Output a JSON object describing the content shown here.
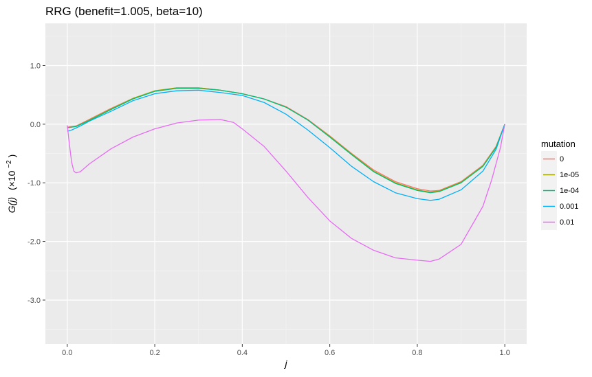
{
  "chart_data": {
    "type": "line",
    "title": "RRG (benefit=1.005, beta=10)",
    "xlabel": "j",
    "ylabel_main": "G(j)",
    "ylabel_scale": "(×10",
    "ylabel_exp": "−2",
    "ylabel_close": ")",
    "xlim": [
      -0.05,
      1.05
    ],
    "ylim": [
      -3.75,
      1.72
    ],
    "x_ticks": [
      0.0,
      0.2,
      0.4,
      0.6,
      0.8,
      1.0
    ],
    "x_tick_labels": [
      "0.0",
      "0.2",
      "0.4",
      "0.6",
      "0.8",
      "1.0"
    ],
    "y_ticks": [
      1.0,
      0.0,
      -1.0,
      -2.0,
      -3.0
    ],
    "y_tick_labels": [
      "1.0",
      "0.0",
      "-1.0",
      "-2.0",
      "-3.0"
    ],
    "grid": true,
    "legend": {
      "title": "mutation",
      "position": "right"
    },
    "series": [
      {
        "name": "0",
        "color": "#F8766D",
        "values": [
          [
            0.0,
            -0.05
          ],
          [
            0.02,
            -0.03
          ],
          [
            0.05,
            0.08
          ],
          [
            0.1,
            0.27
          ],
          [
            0.15,
            0.44
          ],
          [
            0.2,
            0.56
          ],
          [
            0.25,
            0.62
          ],
          [
            0.3,
            0.62
          ],
          [
            0.35,
            0.58
          ],
          [
            0.4,
            0.52
          ],
          [
            0.45,
            0.43
          ],
          [
            0.5,
            0.3
          ],
          [
            0.55,
            0.08
          ],
          [
            0.6,
            -0.2
          ],
          [
            0.65,
            -0.5
          ],
          [
            0.7,
            -0.78
          ],
          [
            0.75,
            -0.98
          ],
          [
            0.8,
            -1.1
          ],
          [
            0.83,
            -1.14
          ],
          [
            0.85,
            -1.13
          ],
          [
            0.9,
            -0.98
          ],
          [
            0.95,
            -0.7
          ],
          [
            0.98,
            -0.38
          ],
          [
            1.0,
            0.0
          ]
        ]
      },
      {
        "name": "1e-05",
        "color": "#A3A500",
        "values": [
          [
            0.0,
            -0.06
          ],
          [
            0.02,
            -0.04
          ],
          [
            0.05,
            0.07
          ],
          [
            0.1,
            0.26
          ],
          [
            0.15,
            0.44
          ],
          [
            0.2,
            0.57
          ],
          [
            0.25,
            0.62
          ],
          [
            0.3,
            0.62
          ],
          [
            0.35,
            0.58
          ],
          [
            0.4,
            0.52
          ],
          [
            0.45,
            0.43
          ],
          [
            0.5,
            0.29
          ],
          [
            0.55,
            0.07
          ],
          [
            0.6,
            -0.21
          ],
          [
            0.65,
            -0.51
          ],
          [
            0.7,
            -0.8
          ],
          [
            0.75,
            -1.0
          ],
          [
            0.8,
            -1.12
          ],
          [
            0.83,
            -1.16
          ],
          [
            0.85,
            -1.14
          ],
          [
            0.9,
            -0.99
          ],
          [
            0.95,
            -0.71
          ],
          [
            0.98,
            -0.39
          ],
          [
            1.0,
            0.0
          ]
        ]
      },
      {
        "name": "1e-04",
        "color": "#00BF7D",
        "values": [
          [
            0.0,
            -0.06
          ],
          [
            0.02,
            -0.04
          ],
          [
            0.05,
            0.06
          ],
          [
            0.1,
            0.25
          ],
          [
            0.15,
            0.43
          ],
          [
            0.2,
            0.56
          ],
          [
            0.25,
            0.61
          ],
          [
            0.3,
            0.61
          ],
          [
            0.35,
            0.58
          ],
          [
            0.4,
            0.52
          ],
          [
            0.45,
            0.43
          ],
          [
            0.5,
            0.29
          ],
          [
            0.55,
            0.07
          ],
          [
            0.6,
            -0.22
          ],
          [
            0.65,
            -0.52
          ],
          [
            0.7,
            -0.81
          ],
          [
            0.75,
            -1.01
          ],
          [
            0.8,
            -1.13
          ],
          [
            0.83,
            -1.17
          ],
          [
            0.85,
            -1.15
          ],
          [
            0.9,
            -1.0
          ],
          [
            0.95,
            -0.72
          ],
          [
            0.98,
            -0.4
          ],
          [
            1.0,
            0.0
          ]
        ]
      },
      {
        "name": "0.001",
        "color": "#00B0F6",
        "values": [
          [
            0.0,
            -0.12
          ],
          [
            0.01,
            -0.1
          ],
          [
            0.03,
            -0.03
          ],
          [
            0.05,
            0.05
          ],
          [
            0.1,
            0.22
          ],
          [
            0.15,
            0.4
          ],
          [
            0.2,
            0.52
          ],
          [
            0.25,
            0.57
          ],
          [
            0.3,
            0.58
          ],
          [
            0.35,
            0.54
          ],
          [
            0.4,
            0.49
          ],
          [
            0.45,
            0.37
          ],
          [
            0.5,
            0.17
          ],
          [
            0.55,
            -0.1
          ],
          [
            0.6,
            -0.4
          ],
          [
            0.65,
            -0.72
          ],
          [
            0.7,
            -0.98
          ],
          [
            0.75,
            -1.17
          ],
          [
            0.8,
            -1.27
          ],
          [
            0.83,
            -1.3
          ],
          [
            0.85,
            -1.28
          ],
          [
            0.9,
            -1.12
          ],
          [
            0.95,
            -0.8
          ],
          [
            0.98,
            -0.43
          ],
          [
            1.0,
            0.0
          ]
        ]
      },
      {
        "name": "0.01",
        "color": "#E76BF3",
        "values": [
          [
            0.0,
            -0.02
          ],
          [
            0.005,
            -0.35
          ],
          [
            0.01,
            -0.65
          ],
          [
            0.015,
            -0.8
          ],
          [
            0.02,
            -0.83
          ],
          [
            0.03,
            -0.81
          ],
          [
            0.05,
            -0.68
          ],
          [
            0.1,
            -0.42
          ],
          [
            0.15,
            -0.22
          ],
          [
            0.2,
            -0.08
          ],
          [
            0.25,
            0.02
          ],
          [
            0.3,
            0.07
          ],
          [
            0.35,
            0.08
          ],
          [
            0.38,
            0.03
          ],
          [
            0.4,
            -0.08
          ],
          [
            0.45,
            -0.38
          ],
          [
            0.5,
            -0.8
          ],
          [
            0.55,
            -1.25
          ],
          [
            0.6,
            -1.65
          ],
          [
            0.65,
            -1.95
          ],
          [
            0.7,
            -2.15
          ],
          [
            0.75,
            -2.28
          ],
          [
            0.8,
            -2.32
          ],
          [
            0.83,
            -2.34
          ],
          [
            0.85,
            -2.3
          ],
          [
            0.9,
            -2.05
          ],
          [
            0.95,
            -1.4
          ],
          [
            0.97,
            -0.95
          ],
          [
            0.99,
            -0.4
          ],
          [
            1.0,
            0.0
          ]
        ]
      }
    ]
  }
}
